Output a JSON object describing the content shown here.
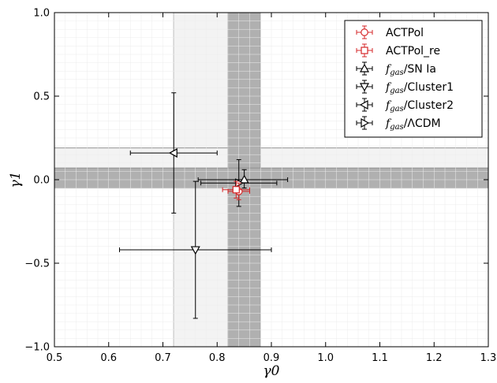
{
  "chart_data": {
    "type": "scatter",
    "xlim": [
      0.5,
      1.3
    ],
    "ylim": [
      -1.0,
      1.0
    ],
    "xlabel": "γ0",
    "ylabel": "γ1",
    "xticks": [
      "0.5",
      "0.6",
      "0.7",
      "0.8",
      "0.9",
      "1.0",
      "1.1",
      "1.2",
      "1.3"
    ],
    "yticks": [
      "−1.0",
      "−0.5",
      "0.0",
      "0.5",
      "1.0"
    ],
    "grid": true,
    "legend_position": "top-right",
    "bands": [
      {
        "orientation": "vertical",
        "range": [
          0.82,
          0.88
        ],
        "color": "#b0b0b0"
      },
      {
        "orientation": "horizontal",
        "range": [
          -0.05,
          0.07
        ],
        "color": "#b0b0b0"
      },
      {
        "orientation": "vertical",
        "range": [
          0.72,
          0.86
        ],
        "color": "#f3f3f3"
      },
      {
        "orientation": "horizontal",
        "range": [
          -0.04,
          0.19
        ],
        "color": "#f3f3f3"
      }
    ],
    "series": [
      {
        "name": "ACTPol",
        "label_prefix": "",
        "label_suffix": "ACTPol",
        "marker": "circle",
        "color": "#d62728",
        "x": 0.84,
        "y": -0.07,
        "xerr": [
          0.02,
          0.02
        ],
        "yerr": [
          0.05,
          0.05
        ]
      },
      {
        "name": "ACTPol_re",
        "label_prefix": "",
        "label_suffix": "ACTPol_re",
        "marker": "square",
        "color": "#d62728",
        "x": 0.835,
        "y": -0.06,
        "xerr": [
          0.025,
          0.025
        ],
        "yerr": [
          0.05,
          0.05
        ]
      },
      {
        "name": "f_gas/SN Ia",
        "label_prefix": "fgas",
        "label_suffix": "/SN Ia",
        "marker": "triangle-up",
        "color": "#000000",
        "x": 0.85,
        "y": 0.0,
        "xerr": [
          0.085,
          0.08
        ],
        "yerr": [
          0.05,
          0.06
        ]
      },
      {
        "name": "f_gas/Cluster1",
        "label_prefix": "fgas",
        "label_suffix": "/Cluster1",
        "marker": "triangle-down",
        "color": "#000000",
        "x": 0.76,
        "y": -0.42,
        "xerr": [
          0.14,
          0.14
        ],
        "yerr": [
          0.41,
          0.41
        ]
      },
      {
        "name": "f_gas/Cluster2",
        "label_prefix": "fgas",
        "label_suffix": "/Cluster2",
        "marker": "triangle-left",
        "color": "#000000",
        "x": 0.72,
        "y": 0.16,
        "xerr": [
          0.08,
          0.08
        ],
        "yerr": [
          0.36,
          0.36
        ]
      },
      {
        "name": "f_gas/ΛCDM",
        "label_prefix": "fgas",
        "label_suffix": "/ΛCDM",
        "marker": "triangle-right",
        "color": "#000000",
        "x": 0.84,
        "y": -0.02,
        "xerr": [
          0.07,
          0.07
        ],
        "yerr": [
          0.14,
          0.14
        ]
      }
    ]
  }
}
